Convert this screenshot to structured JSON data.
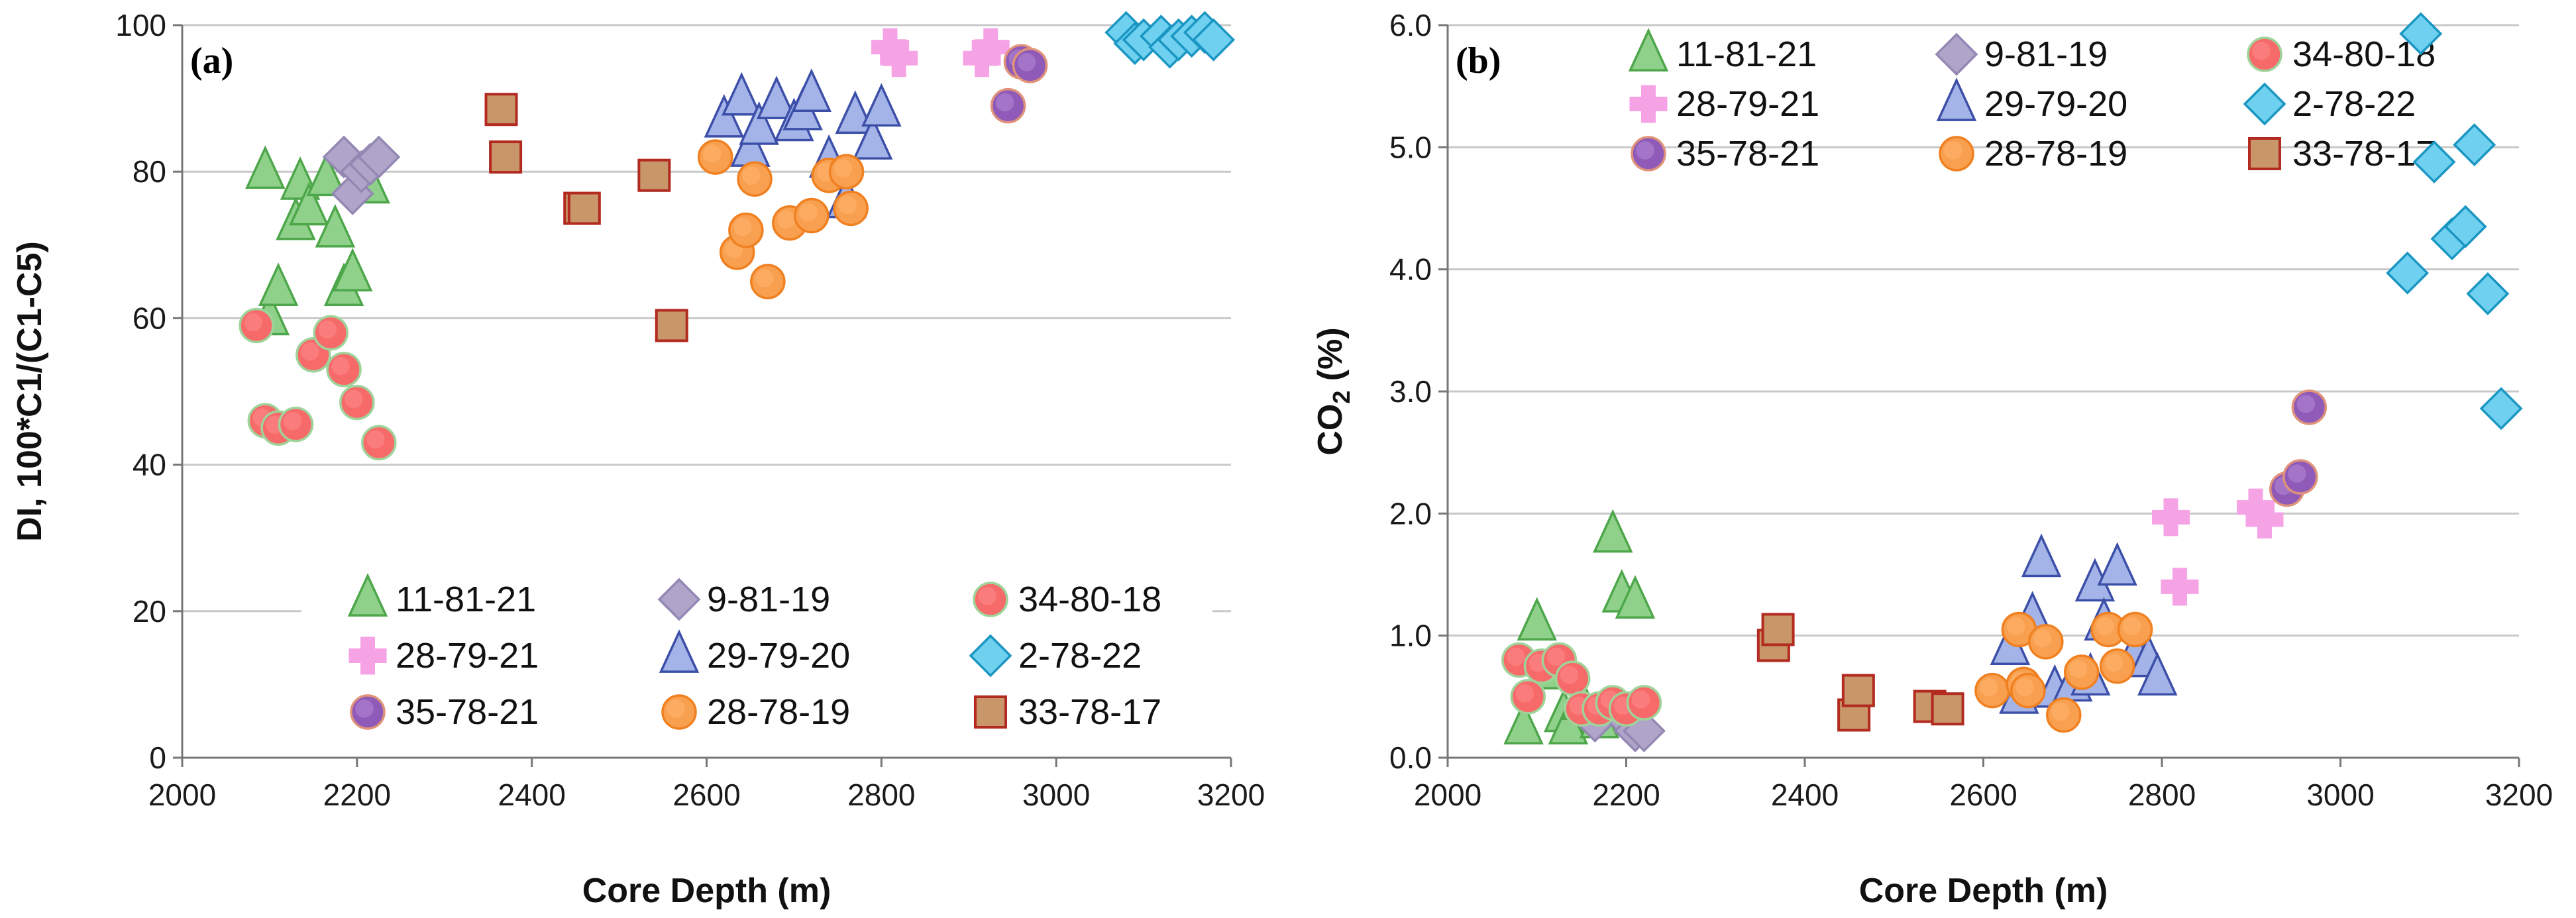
{
  "styles": {
    "11-81-21": {
      "shape": "triangle",
      "fill": "#8fd18a",
      "stroke": "#4ea64a"
    },
    "9-81-19": {
      "shape": "diamond",
      "fill": "#b0a4c8",
      "stroke": "#9388b3"
    },
    "34-80-18": {
      "shape": "circle",
      "fill": "#f76a6a",
      "stroke": "#9ed39a",
      "inner": "#ff8a8a"
    },
    "28-79-21": {
      "shape": "plus",
      "fill": "#f6a3e6",
      "stroke": "#f6a3e6"
    },
    "29-79-20": {
      "shape": "triangle",
      "fill": "#a4b4e8",
      "stroke": "#3c4fa8"
    },
    "2-78-22": {
      "shape": "diamond",
      "fill": "#6fd0f0",
      "stroke": "#1a96c2"
    },
    "35-78-21": {
      "shape": "circle",
      "fill": "#8f5ab8",
      "stroke": "#e0937a",
      "inner": "#b68ad6"
    },
    "28-78-19": {
      "shape": "circle",
      "fill": "#f8a050",
      "stroke": "#f08020",
      "inner": "#ffb470"
    },
    "33-78-17": {
      "shape": "square",
      "fill": "#c9966a",
      "stroke": "#b22a20"
    }
  },
  "chart_data": [
    {
      "type": "scatter",
      "panel_label": "(a)",
      "title": "",
      "xlabel": "Core Depth (m)",
      "ylabel": "DI, 100*C1/(C1-C5)",
      "xlim": [
        2000,
        3200
      ],
      "ylim": [
        0,
        100
      ],
      "x_ticks": [
        "2000",
        "2200",
        "2400",
        "2600",
        "2800",
        "3000",
        "3200"
      ],
      "y_ticks": [
        "0",
        "20",
        "40",
        "60",
        "80",
        "100"
      ],
      "grid": "horizontal",
      "legend_position": "bottom",
      "legend_rows": [
        [
          "11-81-21",
          "9-81-19",
          "34-80-18"
        ],
        [
          "28-79-21",
          "29-79-20",
          "2-78-22"
        ],
        [
          "35-78-21",
          "28-78-19",
          "33-78-17"
        ]
      ],
      "series": [
        {
          "name": "11-81-21",
          "points": [
            [
              2095,
              80
            ],
            [
              2100,
              60
            ],
            [
              2110,
              64
            ],
            [
              2130,
              73
            ],
            [
              2135,
              78.5
            ],
            [
              2145,
              75
            ],
            [
              2165,
              79
            ],
            [
              2175,
              72
            ],
            [
              2185,
              64
            ],
            [
              2195,
              66
            ],
            [
              2215,
              78
            ]
          ]
        },
        {
          "name": "9-81-19",
          "points": [
            [
              2185,
              82
            ],
            [
              2195,
              77
            ],
            [
              2205,
              80
            ],
            [
              2215,
              81
            ],
            [
              2225,
              82
            ]
          ]
        },
        {
          "name": "34-80-18",
          "points": [
            [
              2085,
              59
            ],
            [
              2095,
              46
            ],
            [
              2110,
              45
            ],
            [
              2130,
              45.5
            ],
            [
              2150,
              55
            ],
            [
              2170,
              58
            ],
            [
              2185,
              53
            ],
            [
              2200,
              48.5
            ],
            [
              2225,
              43
            ]
          ]
        },
        {
          "name": "28-79-21",
          "points": [
            [
              2810,
              97
            ],
            [
              2820,
              95.5
            ],
            [
              2915,
              95.5
            ],
            [
              2925,
              97
            ]
          ]
        },
        {
          "name": "29-79-20",
          "points": [
            [
              2620,
              87
            ],
            [
              2640,
              90
            ],
            [
              2650,
              83
            ],
            [
              2660,
              86
            ],
            [
              2680,
              89.5
            ],
            [
              2700,
              86.5
            ],
            [
              2710,
              88
            ],
            [
              2720,
              90.5
            ],
            [
              2740,
              81.5
            ],
            [
              2760,
              76
            ],
            [
              2770,
              87.5
            ],
            [
              2790,
              84
            ],
            [
              2800,
              88.5
            ]
          ]
        },
        {
          "name": "2-78-22",
          "points": [
            [
              3080,
              99
            ],
            [
              3090,
              97.5
            ],
            [
              3100,
              98
            ],
            [
              3120,
              98.5
            ],
            [
              3130,
              97
            ],
            [
              3140,
              98
            ],
            [
              3155,
              98.5
            ],
            [
              3170,
              99
            ],
            [
              3180,
              98
            ]
          ]
        },
        {
          "name": "35-78-21",
          "points": [
            [
              2945,
              89
            ],
            [
              2960,
              95
            ],
            [
              2970,
              94.5
            ]
          ]
        },
        {
          "name": "28-78-19",
          "points": [
            [
              2610,
              82
            ],
            [
              2635,
              69
            ],
            [
              2645,
              72
            ],
            [
              2655,
              79
            ],
            [
              2670,
              65
            ],
            [
              2695,
              73
            ],
            [
              2720,
              74
            ],
            [
              2740,
              79.5
            ],
            [
              2760,
              80
            ],
            [
              2765,
              75
            ]
          ]
        },
        {
          "name": "33-78-17",
          "points": [
            [
              2365,
              88.5
            ],
            [
              2370,
              82
            ],
            [
              2455,
              75
            ],
            [
              2460,
              75
            ],
            [
              2540,
              79.5
            ],
            [
              2560,
              59
            ]
          ]
        }
      ]
    },
    {
      "type": "scatter",
      "panel_label": "(b)",
      "title": "",
      "xlabel": "Core Depth (m)",
      "ylabel": "CO2 (%)",
      "ylabel_main": "CO",
      "ylabel_sub": "2",
      "ylabel_tail": " (%)",
      "xlim": [
        2000,
        3200
      ],
      "ylim": [
        0,
        6
      ],
      "x_ticks": [
        "2000",
        "2200",
        "2400",
        "2600",
        "2800",
        "3000",
        "3200"
      ],
      "y_ticks": [
        "0.0",
        "1.0",
        "2.0",
        "3.0",
        "4.0",
        "5.0",
        "6.0"
      ],
      "grid": "horizontal",
      "legend_position": "top",
      "legend_rows": [
        [
          "11-81-21",
          "9-81-19",
          "34-80-18"
        ],
        [
          "28-79-21",
          "29-79-20",
          "2-78-22"
        ],
        [
          "35-78-21",
          "28-78-19",
          "33-78-17"
        ]
      ],
      "series": [
        {
          "name": "11-81-21",
          "points": [
            [
              2085,
              0.25
            ],
            [
              2100,
              1.1
            ],
            [
              2115,
              0.7
            ],
            [
              2130,
              0.35
            ],
            [
              2135,
              0.25
            ],
            [
              2150,
              0.45
            ],
            [
              2170,
              0.3
            ],
            [
              2185,
              1.82
            ],
            [
              2195,
              1.33
            ],
            [
              2210,
              1.28
            ]
          ]
        },
        {
          "name": "9-81-19",
          "points": [
            [
              2165,
              0.3
            ],
            [
              2195,
              0.35
            ],
            [
              2210,
              0.22
            ],
            [
              2220,
              0.22
            ]
          ]
        },
        {
          "name": "34-80-18",
          "points": [
            [
              2080,
              0.8
            ],
            [
              2090,
              0.5
            ],
            [
              2105,
              0.75
            ],
            [
              2125,
              0.8
            ],
            [
              2140,
              0.65
            ],
            [
              2150,
              0.4
            ],
            [
              2170,
              0.4
            ],
            [
              2185,
              0.45
            ],
            [
              2200,
              0.4
            ],
            [
              2220,
              0.45
            ]
          ]
        },
        {
          "name": "28-79-21",
          "points": [
            [
              2810,
              1.97
            ],
            [
              2820,
              1.4
            ],
            [
              2905,
              2.05
            ],
            [
              2915,
              1.95
            ]
          ]
        },
        {
          "name": "29-79-20",
          "points": [
            [
              2630,
              0.9
            ],
            [
              2640,
              0.5
            ],
            [
              2655,
              1.15
            ],
            [
              2665,
              1.62
            ],
            [
              2680,
              0.55
            ],
            [
              2700,
              0.6
            ],
            [
              2720,
              0.65
            ],
            [
              2725,
              1.42
            ],
            [
              2735,
              1.1
            ],
            [
              2750,
              1.55
            ],
            [
              2770,
              0.85
            ],
            [
              2785,
              0.8
            ],
            [
              2795,
              0.65
            ]
          ]
        },
        {
          "name": "2-78-22",
          "points": [
            [
              3075,
              3.97
            ],
            [
              3090,
              5.93
            ],
            [
              3105,
              4.88
            ],
            [
              3125,
              4.25
            ],
            [
              3140,
              4.35
            ],
            [
              3150,
              5.02
            ],
            [
              3165,
              3.8
            ],
            [
              3180,
              2.86
            ]
          ]
        },
        {
          "name": "35-78-21",
          "points": [
            [
              2940,
              2.2
            ],
            [
              2955,
              2.3
            ],
            [
              2965,
              2.87
            ]
          ]
        },
        {
          "name": "28-78-19",
          "points": [
            [
              2610,
              0.55
            ],
            [
              2640,
              1.05
            ],
            [
              2645,
              0.6
            ],
            [
              2650,
              0.55
            ],
            [
              2670,
              0.95
            ],
            [
              2690,
              0.35
            ],
            [
              2710,
              0.7
            ],
            [
              2740,
              1.05
            ],
            [
              2750,
              0.75
            ],
            [
              2770,
              1.05
            ]
          ]
        },
        {
          "name": "33-78-17",
          "points": [
            [
              2365,
              0.92
            ],
            [
              2370,
              1.05
            ],
            [
              2455,
              0.35
            ],
            [
              2460,
              0.55
            ],
            [
              2540,
              0.42
            ],
            [
              2560,
              0.4
            ]
          ]
        }
      ]
    }
  ]
}
